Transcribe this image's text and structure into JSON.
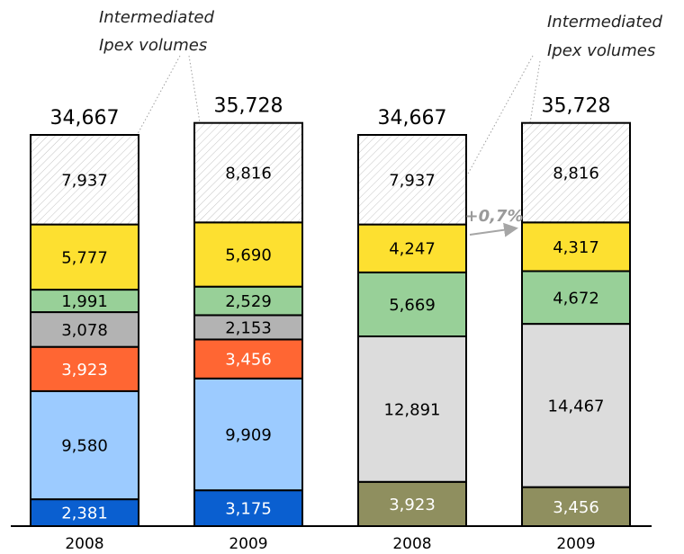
{
  "chart_data": {
    "type": "bar",
    "stacked": true,
    "categories": [
      "2008",
      "2009",
      "2008",
      "2009"
    ],
    "colors": {
      "hatch": "#ffffff",
      "yellow": "#fde030",
      "green": "#98d098",
      "grey": "#b3b3b3",
      "orange": "#ff6633",
      "lightblue": "#9ccbff",
      "blue": "#0a5fd0",
      "lightgrey": "#dcdcdc",
      "olive": "#8f8f5f"
    },
    "bars": [
      {
        "category": "2008",
        "total_label": "34,667",
        "segments": [
          {
            "value": 2381,
            "label": "2,381",
            "color": "blue",
            "text_color": "#ffffff"
          },
          {
            "value": 9580,
            "label": "9,580",
            "color": "lightblue",
            "text_color": "#000000"
          },
          {
            "value": 3923,
            "label": "3,923",
            "color": "orange",
            "text_color": "#ffffff"
          },
          {
            "value": 3078,
            "label": "3,078",
            "color": "grey",
            "text_color": "#000000"
          },
          {
            "value": 1991,
            "label": "1,991",
            "color": "green",
            "text_color": "#000000"
          },
          {
            "value": 5777,
            "label": "5,777",
            "color": "yellow",
            "text_color": "#000000"
          },
          {
            "value": 7937,
            "label": "7,937",
            "color": "hatch",
            "text_color": "#000000",
            "hatched": true
          }
        ]
      },
      {
        "category": "2009",
        "total_label": "35,728",
        "segments": [
          {
            "value": 3175,
            "label": "3,175",
            "color": "blue",
            "text_color": "#ffffff"
          },
          {
            "value": 9909,
            "label": "9,909",
            "color": "lightblue",
            "text_color": "#000000"
          },
          {
            "value": 3456,
            "label": "3,456",
            "color": "orange",
            "text_color": "#ffffff"
          },
          {
            "value": 2153,
            "label": "2,153",
            "color": "grey",
            "text_color": "#000000"
          },
          {
            "value": 2529,
            "label": "2,529",
            "color": "green",
            "text_color": "#000000"
          },
          {
            "value": 5690,
            "label": "5,690",
            "color": "yellow",
            "text_color": "#000000"
          },
          {
            "value": 8816,
            "label": "8,816",
            "color": "hatch",
            "text_color": "#000000",
            "hatched": true
          }
        ]
      },
      {
        "category": "2008",
        "total_label": "34,667",
        "segments": [
          {
            "value": 3923,
            "label": "3,923",
            "color": "olive",
            "text_color": "#ffffff"
          },
          {
            "value": 12891,
            "label": "12,891",
            "color": "lightgrey",
            "text_color": "#000000"
          },
          {
            "value": 5669,
            "label": "5,669",
            "color": "green",
            "text_color": "#000000"
          },
          {
            "value": 4247,
            "label": "4,247",
            "color": "yellow",
            "text_color": "#000000"
          },
          {
            "value": 7937,
            "label": "7,937",
            "color": "hatch",
            "text_color": "#000000",
            "hatched": true
          }
        ]
      },
      {
        "category": "2009",
        "total_label": "35,728",
        "segments": [
          {
            "value": 3456,
            "label": "3,456",
            "color": "olive",
            "text_color": "#ffffff"
          },
          {
            "value": 14467,
            "label": "14,467",
            "color": "lightgrey",
            "text_color": "#000000"
          },
          {
            "value": 4672,
            "label": "4,672",
            "color": "green",
            "text_color": "#000000"
          },
          {
            "value": 4317,
            "label": "4,317",
            "color": "yellow",
            "text_color": "#000000"
          },
          {
            "value": 8816,
            "label": "8,816",
            "color": "hatch",
            "text_color": "#000000",
            "hatched": true
          }
        ]
      }
    ],
    "annotations": [
      {
        "lines": [
          "Intermediated",
          "Ipex volumes"
        ]
      },
      {
        "lines": [
          "Intermediated",
          "Ipex volumes"
        ]
      }
    ],
    "growth": {
      "label": "+0,7%",
      "from_bar": 2,
      "to_bar": 3
    }
  }
}
